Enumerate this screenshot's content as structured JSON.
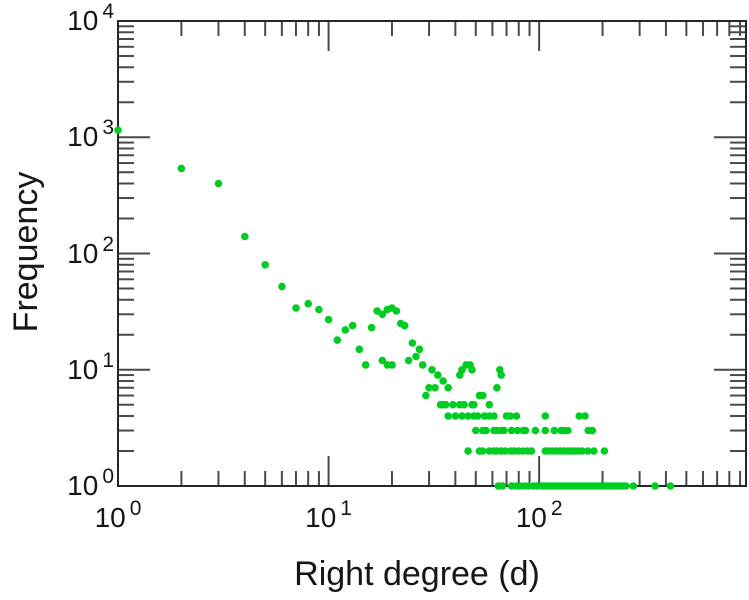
{
  "figure": {
    "background": "#ffffff"
  },
  "chart_data": {
    "type": "scatter",
    "title": "",
    "xlabel": "Right degree (d)",
    "ylabel": "Frequency",
    "x_scale": "log",
    "y_scale": "log",
    "xlim": [
      1,
      960
    ],
    "ylim": [
      1,
      10000
    ],
    "grid": false,
    "legend": null,
    "marker_color": "#00CC22",
    "frame_color": "#262626",
    "tick_color": "#4a4a4a",
    "x_ticks": [
      {
        "value": 1,
        "base": "10",
        "exp": "0"
      },
      {
        "value": 10,
        "base": "10",
        "exp": "1"
      },
      {
        "value": 100,
        "base": "10",
        "exp": "2"
      }
    ],
    "y_ticks": [
      {
        "value": 10000,
        "base": "10",
        "exp": "4"
      },
      {
        "value": 1000,
        "base": "10",
        "exp": "3"
      },
      {
        "value": 100,
        "base": "10",
        "exp": "2"
      },
      {
        "value": 10,
        "base": "10",
        "exp": "1"
      },
      {
        "value": 1,
        "base": "10",
        "exp": "0"
      }
    ],
    "points": [
      [
        1,
        1150
      ],
      [
        2,
        540
      ],
      [
        3,
        400
      ],
      [
        4,
        140
      ],
      [
        5,
        80
      ],
      [
        6,
        52
      ],
      [
        7,
        34
      ],
      [
        8,
        37
      ],
      [
        9,
        33
      ],
      [
        10,
        27
      ],
      [
        11,
        18
      ],
      [
        12,
        22
      ],
      [
        13,
        24
      ],
      [
        14,
        15
      ],
      [
        15,
        11
      ],
      [
        16,
        23
      ],
      [
        17,
        32
      ],
      [
        18,
        30
      ],
      [
        19,
        33
      ],
      [
        20,
        34
      ],
      [
        21,
        32
      ],
      [
        22,
        25
      ],
      [
        23,
        24
      ],
      [
        18,
        12
      ],
      [
        19,
        11
      ],
      [
        20,
        11
      ],
      [
        24,
        12
      ],
      [
        25,
        17
      ],
      [
        26,
        13
      ],
      [
        27,
        15
      ],
      [
        28,
        11
      ],
      [
        29,
        6
      ],
      [
        30,
        7
      ],
      [
        32,
        7
      ],
      [
        31,
        10
      ],
      [
        33,
        9
      ],
      [
        35,
        8
      ],
      [
        37,
        7
      ],
      [
        42,
        9
      ],
      [
        43,
        10
      ],
      [
        45,
        11
      ],
      [
        47,
        11
      ],
      [
        48,
        10
      ],
      [
        52,
        6
      ],
      [
        54,
        6
      ],
      [
        63,
        7
      ],
      [
        65,
        10
      ],
      [
        66,
        9
      ],
      [
        34,
        5
      ],
      [
        35,
        5
      ],
      [
        36,
        5
      ],
      [
        39,
        5
      ],
      [
        42,
        5
      ],
      [
        44,
        5
      ],
      [
        48,
        5
      ],
      [
        49,
        5
      ],
      [
        58,
        5
      ],
      [
        37,
        4
      ],
      [
        40,
        4
      ],
      [
        43,
        4
      ],
      [
        46,
        4
      ],
      [
        49,
        4
      ],
      [
        51,
        4
      ],
      [
        55,
        4
      ],
      [
        58,
        4
      ],
      [
        61,
        4
      ],
      [
        70,
        4
      ],
      [
        73,
        4
      ],
      [
        78,
        4
      ],
      [
        107,
        4
      ],
      [
        155,
        4
      ],
      [
        165,
        4
      ],
      [
        50,
        3
      ],
      [
        54,
        3
      ],
      [
        56,
        3
      ],
      [
        61,
        3
      ],
      [
        63,
        3
      ],
      [
        66,
        3
      ],
      [
        68,
        3
      ],
      [
        74,
        3
      ],
      [
        79,
        3
      ],
      [
        84,
        3
      ],
      [
        86,
        3
      ],
      [
        96,
        3
      ],
      [
        107,
        3
      ],
      [
        118,
        3
      ],
      [
        127,
        3
      ],
      [
        131,
        3
      ],
      [
        137,
        3
      ],
      [
        171,
        3
      ],
      [
        179,
        3
      ],
      [
        46,
        2
      ],
      [
        52,
        2
      ],
      [
        54,
        2
      ],
      [
        58,
        2
      ],
      [
        61,
        2
      ],
      [
        63,
        2
      ],
      [
        66,
        2
      ],
      [
        69,
        2
      ],
      [
        73,
        2
      ],
      [
        76,
        2
      ],
      [
        80,
        2
      ],
      [
        84,
        2
      ],
      [
        88,
        2
      ],
      [
        92,
        2
      ],
      [
        107,
        2
      ],
      [
        111,
        2
      ],
      [
        116,
        2
      ],
      [
        121,
        2
      ],
      [
        126,
        2
      ],
      [
        131,
        2
      ],
      [
        137,
        2
      ],
      [
        141,
        2
      ],
      [
        147,
        2
      ],
      [
        153,
        2
      ],
      [
        160,
        2
      ],
      [
        170,
        2
      ],
      [
        182,
        2
      ],
      [
        204,
        2
      ],
      [
        64,
        1
      ],
      [
        67,
        1
      ],
      [
        74,
        1
      ],
      [
        78,
        1
      ],
      [
        81,
        1
      ],
      [
        85,
        1
      ],
      [
        89,
        1
      ],
      [
        94,
        1
      ],
      [
        98,
        1
      ],
      [
        103,
        1
      ],
      [
        107,
        1
      ],
      [
        111,
        1
      ],
      [
        115,
        1
      ],
      [
        119,
        1
      ],
      [
        124,
        1
      ],
      [
        129,
        1
      ],
      [
        134,
        1
      ],
      [
        139,
        1
      ],
      [
        144,
        1
      ],
      [
        150,
        1
      ],
      [
        156,
        1
      ],
      [
        162,
        1
      ],
      [
        168,
        1
      ],
      [
        175,
        1
      ],
      [
        182,
        1
      ],
      [
        189,
        1
      ],
      [
        196,
        1
      ],
      [
        204,
        1
      ],
      [
        212,
        1
      ],
      [
        220,
        1
      ],
      [
        229,
        1
      ],
      [
        238,
        1
      ],
      [
        248,
        1
      ],
      [
        258,
        1
      ],
      [
        280,
        1
      ],
      [
        355,
        1
      ],
      [
        420,
        1
      ]
    ]
  }
}
